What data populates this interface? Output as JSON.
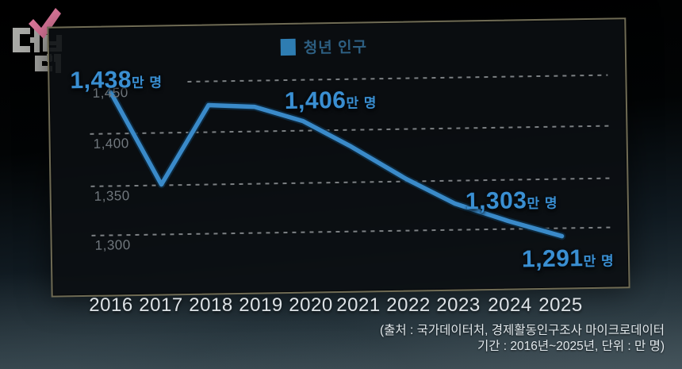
{
  "legend": {
    "label": "청년 인구",
    "swatch_color": "#2e7db2"
  },
  "chart_data": {
    "type": "line",
    "title": "청년 인구",
    "categories": [
      "2016",
      "2017",
      "2018",
      "2019",
      "2020",
      "2021",
      "2022",
      "2023",
      "2024",
      "2025"
    ],
    "series": [
      {
        "name": "청년 인구",
        "values": [
          1438,
          1350,
          1428,
          1406,
          1412,
          1385,
          1352,
          1326,
          1303,
          1291
        ]
      }
    ],
    "unit": "만 명",
    "ylabel": "",
    "xlabel": "",
    "ylim": [
      1270,
      1465
    ],
    "y_gridline_values": [
      1450,
      1400,
      1350,
      1300
    ],
    "grid": "horizontal dashed",
    "legend_position": "top-center",
    "line_color": "#3a8ac9",
    "labeled_points": [
      {
        "year": "2016",
        "label": "1,438만 명"
      },
      {
        "year": "2019",
        "label": "1,406만 명"
      },
      {
        "year": "2024",
        "label": "1,303만 명"
      },
      {
        "year": "2025",
        "label": "1,291만 명"
      }
    ]
  },
  "axis": {
    "y_labels": [
      "1,450",
      "1,400",
      "1,350",
      "1,300"
    ]
  },
  "annotations": {
    "labels": [
      {
        "value": "1,438",
        "suffix": "만 명"
      },
      {
        "value": "1,406",
        "suffix": "만 명"
      },
      {
        "value": "1,303",
        "suffix": "만 명"
      },
      {
        "value": "1,291",
        "suffix": "만 명"
      }
    ]
  },
  "source": {
    "line1": "(출처 : 국가데이터처, 경제활동인구조사 마이크로데이터",
    "line2": "기간 : 2016년~2025년,   단위 : 만 명)"
  }
}
